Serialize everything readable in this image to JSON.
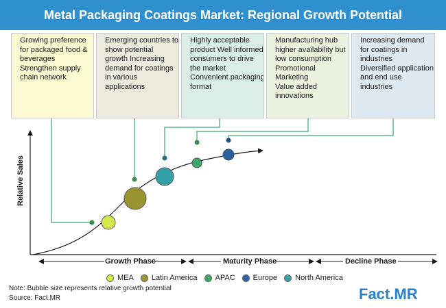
{
  "title": "Metal Packaging Coatings Market: Regional Growth Potential",
  "boxes": [
    {
      "color": "#fcfad2",
      "lines": [
        "Growing preference",
        "for packaged food &",
        "beverages",
        "Strengthen supply",
        "chain network"
      ]
    },
    {
      "color": "#eeeade",
      "lines": [
        "Emerging countries to",
        "show potential",
        "growth Increasing",
        "demand for coatings",
        "in various",
        "applications"
      ]
    },
    {
      "color": "#dceee8",
      "lines": [
        "Highly acceptable",
        "product Well informed",
        "consumers to drive",
        "the market",
        "Convenient packaging",
        "format"
      ]
    },
    {
      "color": "#eaf3e0",
      "lines": [
        "Manufacturing hub",
        "higher availability but",
        "low consumption",
        "Promotional",
        "Marketing",
        "Value added",
        "innovations"
      ]
    },
    {
      "color": "#dfe9f2",
      "lines": [
        "Increasing demand",
        "for coatings in",
        "industries",
        "Diversified application",
        "and end use",
        "industries"
      ]
    }
  ],
  "y_axis_label": "Relative Sales",
  "phases": [
    "Growth Phase",
    "Maturity Phase",
    "Decline Phase"
  ],
  "legend": [
    {
      "label": "MEA",
      "color": "#d7e84a"
    },
    {
      "label": "Latin America",
      "color": "#9a9430"
    },
    {
      "label": "APAC",
      "color": "#3fa66a"
    },
    {
      "label": "Europe",
      "color": "#2c5f9e"
    },
    {
      "label": "North America",
      "color": "#36a0a8"
    }
  ],
  "bubbles": [
    {
      "region": "MEA",
      "color": "#d7e84a"
    },
    {
      "region": "Latin America",
      "color": "#9a9430"
    },
    {
      "region": "North America",
      "color": "#36a0a8"
    },
    {
      "region": "APAC",
      "color": "#3fa66a"
    },
    {
      "region": "Europe",
      "color": "#2c5f9e"
    }
  ],
  "note": "Note: Bubble size represents relative growth potential",
  "source": "Source: Fact.MR",
  "logo": {
    "part1": "Fact",
    "part2": ".MR"
  }
}
